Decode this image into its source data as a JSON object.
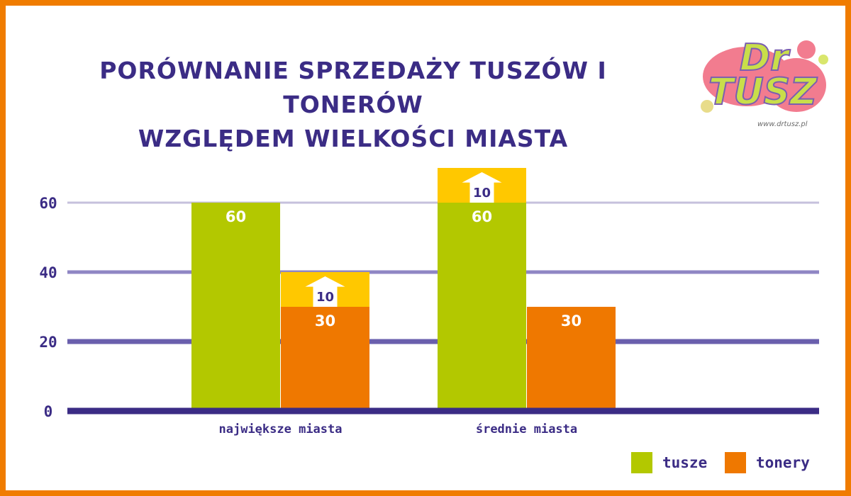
{
  "colors": {
    "frame": "#f07c00",
    "title": "#3b2c85",
    "tusze": "#b3c800",
    "tonery": "#ef7800",
    "increase": "#ffc800",
    "grid_light": "#c6c0dc",
    "grid_mid": "#8f86c4",
    "grid_dark": "#6a5fad",
    "axis": "#3b2c85"
  },
  "logo": {
    "line1": "Dr",
    "line2": "TUSZ",
    "url": "www.drtusz.pl"
  },
  "chart_data": {
    "type": "bar",
    "title": [
      "PORÓWNANIE SPRZEDAŻY TUSZÓW I TONERÓW",
      "WZGLĘDEM WIELKOŚCI MIASTA"
    ],
    "categories": [
      "największe miasta",
      "średnie miasta"
    ],
    "series": [
      {
        "name": "tusze",
        "values": [
          60,
          60
        ],
        "increase": [
          null,
          10
        ],
        "value_labels": [
          "60",
          "60"
        ],
        "increase_labels": [
          "",
          "10"
        ]
      },
      {
        "name": "tonery",
        "values": [
          30,
          30
        ],
        "increase": [
          10,
          null
        ],
        "value_labels": [
          "30",
          "30"
        ],
        "increase_labels": [
          "10",
          ""
        ]
      }
    ],
    "yticks": [
      "0",
      "20",
      "40",
      "60"
    ],
    "ytick_values": [
      0,
      20,
      40,
      60
    ],
    "ylim": [
      0,
      70
    ],
    "grid": true,
    "legend_position": "bottom-right"
  }
}
